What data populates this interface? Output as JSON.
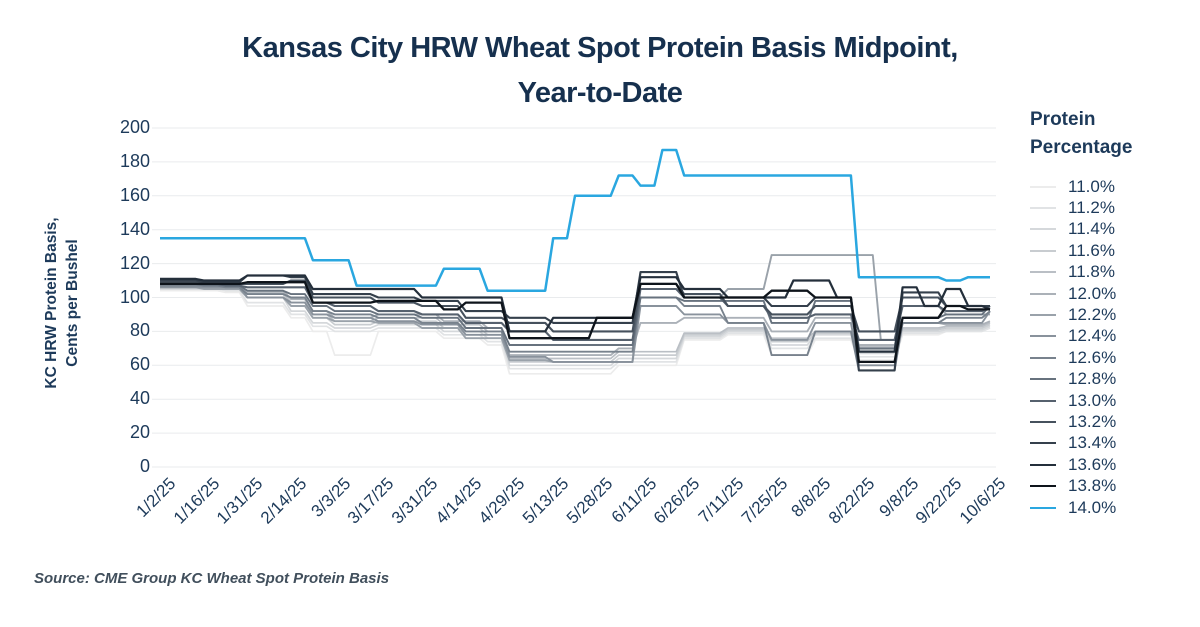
{
  "title": {
    "line1": "Kansas City HRW Wheat Spot Protein Basis Midpoint,",
    "line2": "Year-to-Date"
  },
  "y_axis": {
    "title_line1": "KC HRW Protein Basis,",
    "title_line2": "Cents per Bushel",
    "ticks": [
      0,
      20,
      40,
      60,
      80,
      100,
      120,
      140,
      160,
      180,
      200
    ]
  },
  "x_axis": {
    "tick_labels": [
      "1/2/25",
      "1/16/25",
      "1/31/25",
      "2/14/25",
      "3/3/25",
      "3/17/25",
      "3/31/25",
      "4/14/25",
      "4/29/25",
      "5/13/25",
      "5/28/25",
      "6/11/25",
      "6/26/25",
      "7/11/25",
      "7/25/25",
      "8/8/25",
      "8/22/25",
      "9/8/25",
      "9/22/25",
      "10/6/25"
    ]
  },
  "legend": {
    "title_line1": "Protein",
    "title_line2": "Percentage"
  },
  "source": "Source: CME Group KC Wheat Spot Protein Basis",
  "colors": {
    "title_text": "#16304e",
    "axis_text": "#1d3a5a",
    "grid": "#e9ebed",
    "source_text": "#414f5c",
    "background": "#ffffff",
    "accent_blue": "#2aa7e0"
  },
  "chart_data": {
    "type": "line",
    "title": "Kansas City HRW Wheat Spot Protein Basis Midpoint, Year-to-Date",
    "ylabel": "KC HRW Protein Basis, Cents per Bushel",
    "ylim": [
      0,
      200
    ],
    "y_tick_step": 20,
    "grid": "horizontal-only",
    "legend_title": "Protein Percentage",
    "legend_position": "right",
    "x_tick_labels": [
      "1/2/25",
      "1/16/25",
      "1/31/25",
      "2/14/25",
      "3/3/25",
      "3/17/25",
      "3/31/25",
      "4/14/25",
      "4/29/25",
      "5/13/25",
      "5/28/25",
      "6/11/25",
      "6/26/25",
      "7/11/25",
      "7/25/25",
      "8/8/25",
      "8/22/25",
      "9/8/25",
      "9/22/25",
      "10/6/25"
    ],
    "x_points_per_label": 2,
    "x_resolution": "weekly (39 points, labeled ticks at every other point)",
    "series": [
      {
        "name": "11.0%",
        "color": "#ececec",
        "values": [
          104,
          104,
          104,
          103,
          95,
          95,
          88,
          80,
          66,
          66,
          80,
          80,
          80,
          76,
          76,
          72,
          55,
          55,
          55,
          55,
          55,
          60,
          60,
          60,
          75,
          75,
          78,
          78,
          66,
          66,
          75,
          75,
          63,
          63,
          78,
          78,
          80,
          80,
          82
        ]
      },
      {
        "name": "11.2%",
        "color": "#e1e3e5",
        "values": [
          105,
          105,
          105,
          104,
          97,
          97,
          90,
          83,
          80,
          80,
          82,
          82,
          82,
          78,
          78,
          74,
          58,
          58,
          58,
          58,
          58,
          62,
          62,
          62,
          76,
          76,
          79,
          79,
          70,
          70,
          76,
          76,
          65,
          65,
          79,
          79,
          80,
          80,
          82
        ]
      },
      {
        "name": "11.4%",
        "color": "#d5d8db",
        "values": [
          105,
          105,
          105,
          105,
          100,
          100,
          92,
          85,
          82,
          82,
          84,
          84,
          84,
          80,
          80,
          76,
          60,
          60,
          60,
          60,
          60,
          64,
          64,
          64,
          77,
          77,
          80,
          80,
          72,
          72,
          78,
          78,
          67,
          67,
          80,
          80,
          81,
          81,
          83
        ]
      },
      {
        "name": "11.6%",
        "color": "#c8ccd0",
        "values": [
          106,
          106,
          106,
          105,
          102,
          102,
          95,
          88,
          84,
          84,
          86,
          86,
          86,
          82,
          82,
          78,
          62,
          62,
          62,
          62,
          62,
          66,
          66,
          66,
          78,
          78,
          81,
          81,
          74,
          74,
          79,
          79,
          69,
          69,
          81,
          81,
          82,
          82,
          84
        ]
      },
      {
        "name": "11.8%",
        "color": "#babfc5",
        "values": [
          106,
          106,
          106,
          106,
          103,
          103,
          97,
          90,
          86,
          86,
          88,
          88,
          88,
          84,
          84,
          80,
          64,
          64,
          64,
          64,
          64,
          68,
          68,
          68,
          79,
          79,
          82,
          82,
          76,
          76,
          80,
          80,
          71,
          71,
          82,
          82,
          83,
          83,
          85
        ]
      },
      {
        "name": "12.0%",
        "color": "#abb1b8",
        "values": [
          107,
          107,
          106,
          106,
          104,
          104,
          99,
          92,
          88,
          88,
          90,
          90,
          90,
          86,
          86,
          82,
          66,
          66,
          66,
          66,
          66,
          70,
          85,
          85,
          88,
          88,
          88,
          88,
          80,
          80,
          88,
          88,
          72,
          72,
          85,
          85,
          84,
          84,
          86
        ]
      },
      {
        "name": "12.2%",
        "color": "#9aa2aa",
        "values": [
          106,
          106,
          105,
          105,
          100,
          100,
          95,
          88,
          86,
          86,
          85,
          85,
          82,
          82,
          76,
          76,
          63,
          63,
          62,
          62,
          62,
          62,
          115,
          115,
          100,
          100,
          105,
          105,
          125,
          125,
          125,
          125,
          125,
          75,
          95,
          95,
          90,
          90,
          90
        ]
      },
      {
        "name": "12.4%",
        "color": "#89929c",
        "values": [
          106,
          106,
          106,
          106,
          100,
          100,
          97,
          90,
          88,
          88,
          86,
          86,
          84,
          84,
          78,
          78,
          65,
          65,
          62,
          62,
          62,
          62,
          95,
          95,
          90,
          90,
          85,
          85,
          75,
          75,
          85,
          85,
          60,
          60,
          85,
          85,
          85,
          85,
          92
        ]
      },
      {
        "name": "12.6%",
        "color": "#78828d",
        "values": [
          107,
          107,
          107,
          106,
          102,
          102,
          100,
          92,
          90,
          90,
          88,
          88,
          85,
          85,
          80,
          80,
          68,
          68,
          68,
          68,
          68,
          68,
          100,
          100,
          95,
          95,
          85,
          85,
          66,
          66,
          80,
          80,
          57,
          57,
          85,
          85,
          88,
          88,
          92
        ]
      },
      {
        "name": "12.8%",
        "color": "#67727e",
        "values": [
          108,
          108,
          107,
          107,
          104,
          104,
          102,
          95,
          92,
          92,
          90,
          90,
          88,
          88,
          82,
          82,
          72,
          72,
          72,
          72,
          72,
          72,
          100,
          100,
          98,
          98,
          98,
          98,
          85,
          85,
          98,
          98,
          70,
          70,
          88,
          88,
          90,
          90,
          95
        ]
      },
      {
        "name": "13.0%",
        "color": "#56616e",
        "values": [
          108,
          108,
          108,
          107,
          106,
          106,
          106,
          97,
          95,
          95,
          92,
          92,
          90,
          90,
          85,
          85,
          80,
          80,
          75,
          75,
          75,
          75,
          105,
          105,
          100,
          100,
          95,
          95,
          88,
          88,
          90,
          90,
          75,
          75,
          95,
          95,
          92,
          92,
          95
        ]
      },
      {
        "name": "13.2%",
        "color": "#46515d",
        "values": [
          109,
          109,
          108,
          108,
          108,
          108,
          110,
          100,
          100,
          100,
          97,
          97,
          95,
          95,
          88,
          88,
          85,
          85,
          80,
          80,
          80,
          80,
          108,
          108,
          102,
          102,
          95,
          95,
          90,
          90,
          95,
          95,
          80,
          80,
          100,
          100,
          95,
          95,
          95
        ]
      },
      {
        "name": "13.4%",
        "color": "#35404c",
        "values": [
          110,
          110,
          109,
          109,
          113,
          113,
          112,
          102,
          102,
          102,
          100,
          100,
          98,
          98,
          92,
          92,
          88,
          88,
          85,
          85,
          85,
          85,
          115,
          115,
          100,
          100,
          100,
          100,
          95,
          95,
          100,
          100,
          57,
          57,
          103,
          103,
          95,
          95,
          95
        ]
      },
      {
        "name": "13.6%",
        "color": "#242f3b",
        "values": [
          111,
          111,
          110,
          110,
          113,
          113,
          113,
          105,
          105,
          105,
          105,
          105,
          100,
          100,
          100,
          100,
          80,
          80,
          88,
          88,
          88,
          88,
          112,
          112,
          105,
          105,
          100,
          100,
          100,
          110,
          110,
          100,
          68,
          68,
          106,
          95,
          105,
          95,
          93
        ]
      },
      {
        "name": "13.8%",
        "color": "#0e141b",
        "values": [
          108,
          108,
          108,
          108,
          109,
          109,
          109,
          97,
          97,
          97,
          98,
          98,
          98,
          93,
          97,
          97,
          76,
          76,
          76,
          76,
          88,
          88,
          108,
          108,
          100,
          100,
          100,
          100,
          104,
          104,
          100,
          100,
          62,
          62,
          88,
          88,
          95,
          93,
          93
        ]
      },
      {
        "name": "14.0%",
        "color": "#2aa7e0",
        "values": [
          135,
          135,
          135,
          135,
          135,
          135,
          135,
          122,
          122,
          107,
          107,
          107,
          107,
          117,
          117,
          104,
          104,
          104,
          135,
          160,
          160,
          172,
          166,
          187,
          172,
          172,
          172,
          172,
          172,
          172,
          172,
          172,
          112,
          112,
          112,
          112,
          110,
          112,
          112
        ]
      }
    ]
  }
}
